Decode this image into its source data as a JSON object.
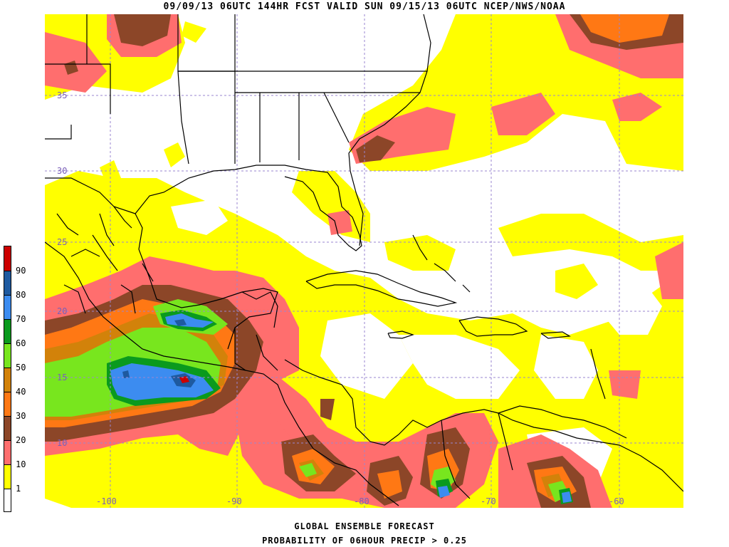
{
  "header": {
    "title": "09/09/13 06UTC  144HR  FCST VALID SUN 09/15/13 06UTC  NCEP/NWS/NOAA"
  },
  "axes": {
    "lat_labels": [
      "35",
      "30",
      "25",
      "20",
      "15",
      "10"
    ],
    "lon_labels": [
      "-100",
      "-90",
      "-80",
      "-70",
      "-60"
    ]
  },
  "legend": {
    "labels": [
      "90",
      "80",
      "70",
      "60",
      "50",
      "40",
      "30",
      "20",
      "10",
      "1"
    ],
    "colors": [
      "#cc0000",
      "#1e5aa0",
      "#3c8cf0",
      "#0a9a1e",
      "#78e61e",
      "#d2820a",
      "#ff7814",
      "#8c4628",
      "#ff6e6e",
      "#ffff00",
      "#ffffff"
    ]
  },
  "footer": {
    "line1": "GLOBAL ENSEMBLE FORECAST",
    "line2": "PROBABILITY OF 06HOUR PRECIP > 0.25"
  }
}
